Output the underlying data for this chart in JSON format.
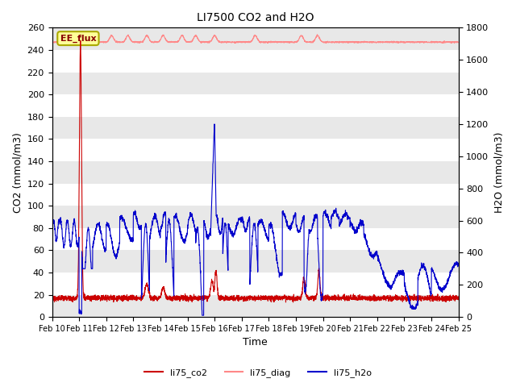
{
  "title": "LI7500 CO2 and H2O",
  "xlabel": "Time",
  "ylabel_left": "CO2 (mmol/m3)",
  "ylabel_right": "H2O (mmol/m3)",
  "ylim_left": [
    0,
    260
  ],
  "ylim_right": [
    0,
    1800
  ],
  "yticks_left": [
    0,
    20,
    40,
    60,
    80,
    100,
    120,
    140,
    160,
    180,
    200,
    220,
    240,
    260
  ],
  "yticks_right": [
    0,
    200,
    400,
    600,
    800,
    1000,
    1200,
    1400,
    1600,
    1800
  ],
  "xlim": [
    0,
    15
  ],
  "xticklabels": [
    "Feb 10",
    "Feb 11",
    "Feb 12",
    "Feb 13",
    "Feb 14",
    "Feb 15",
    "Feb 16",
    "Feb 17",
    "Feb 18",
    "Feb 19",
    "Feb 20",
    "Feb 21",
    "Feb 22",
    "Feb 23",
    "Feb 24",
    "Feb 25"
  ],
  "annotation_text": "EE_flux",
  "colors": {
    "co2": "#cc0000",
    "diag": "#ff8888",
    "h2o": "#0000cc",
    "annotation_bg": "#ffff99",
    "annotation_border": "#aaaa00",
    "grid": "#cccccc",
    "band_color": "#e8e8e8"
  },
  "legend_entries": [
    "li75_co2",
    "li75_diag",
    "li75_h2o"
  ],
  "legend_colors": [
    "#cc0000",
    "#ff8888",
    "#0000cc"
  ]
}
